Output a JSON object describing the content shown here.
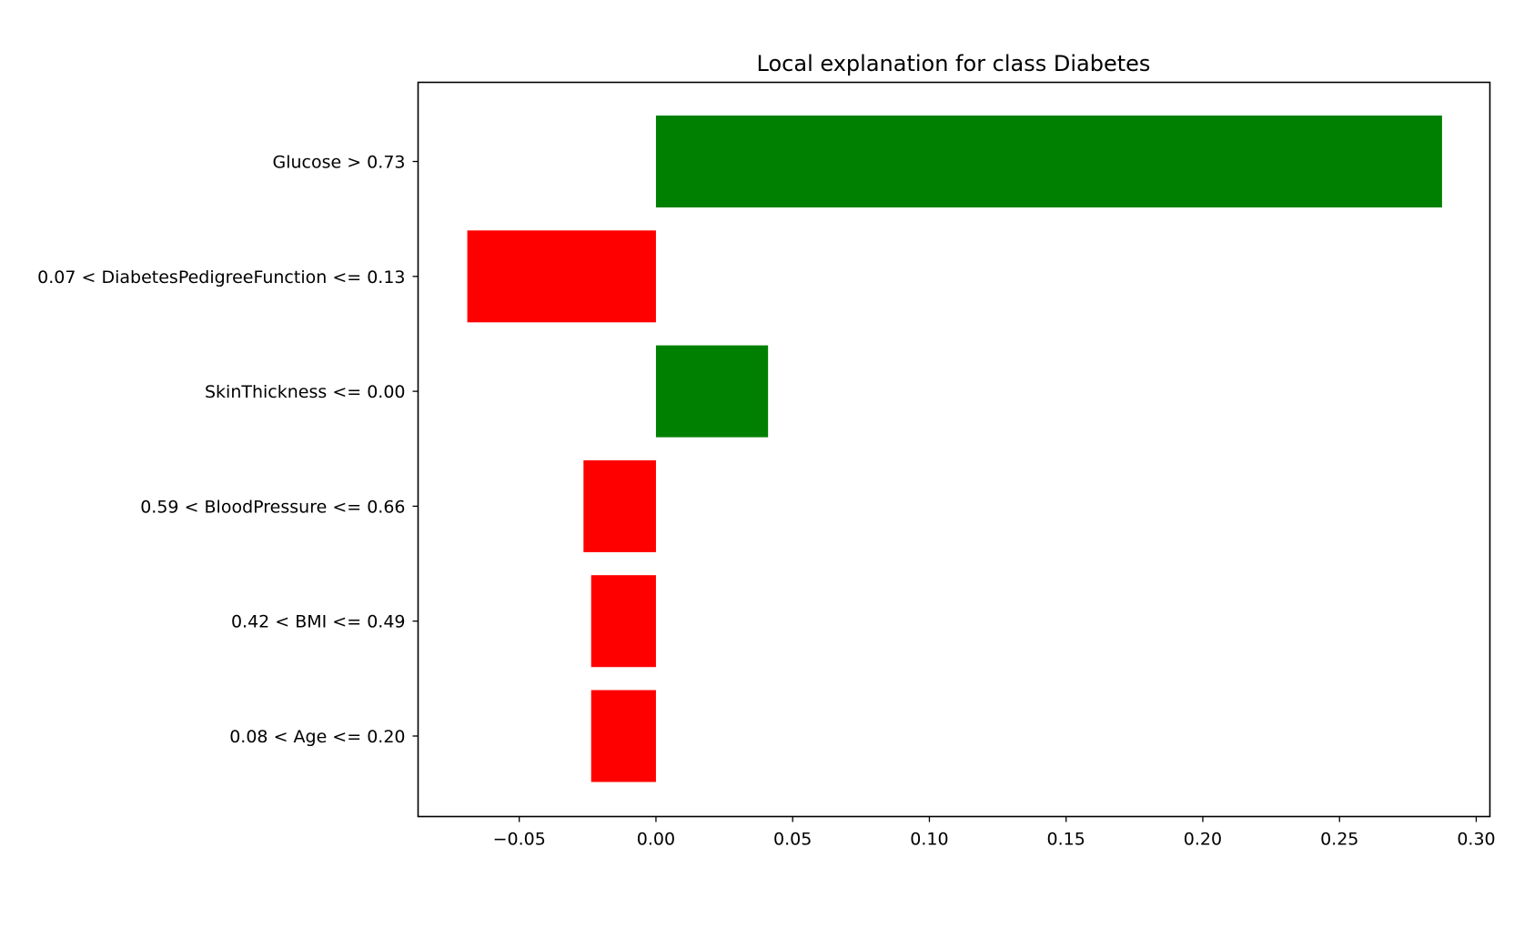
{
  "chart_data": {
    "type": "bar",
    "orientation": "horizontal",
    "title": "Local explanation for class Diabetes",
    "xlabel": "",
    "ylabel": "",
    "xlim": [
      -0.087,
      0.305
    ],
    "xticks": [
      -0.05,
      0.0,
      0.05,
      0.1,
      0.15,
      0.2,
      0.25,
      0.3
    ],
    "xtick_labels": [
      "−0.05",
      "0.00",
      "0.05",
      "0.10",
      "0.15",
      "0.20",
      "0.25",
      "0.30"
    ],
    "grid": false,
    "categories": [
      "Glucose > 0.73",
      "0.07 < DiabetesPedigreeFunction <= 0.13",
      "SkinThickness <= 0.00",
      "0.59 < BloodPressure <= 0.66",
      "0.42 < BMI <= 0.49",
      "0.08 < Age <= 0.20"
    ],
    "values": [
      0.2875,
      -0.069,
      0.041,
      -0.0265,
      -0.0237,
      -0.0237
    ],
    "colors": {
      "positive": "#008000",
      "negative": "#ff0000"
    }
  }
}
